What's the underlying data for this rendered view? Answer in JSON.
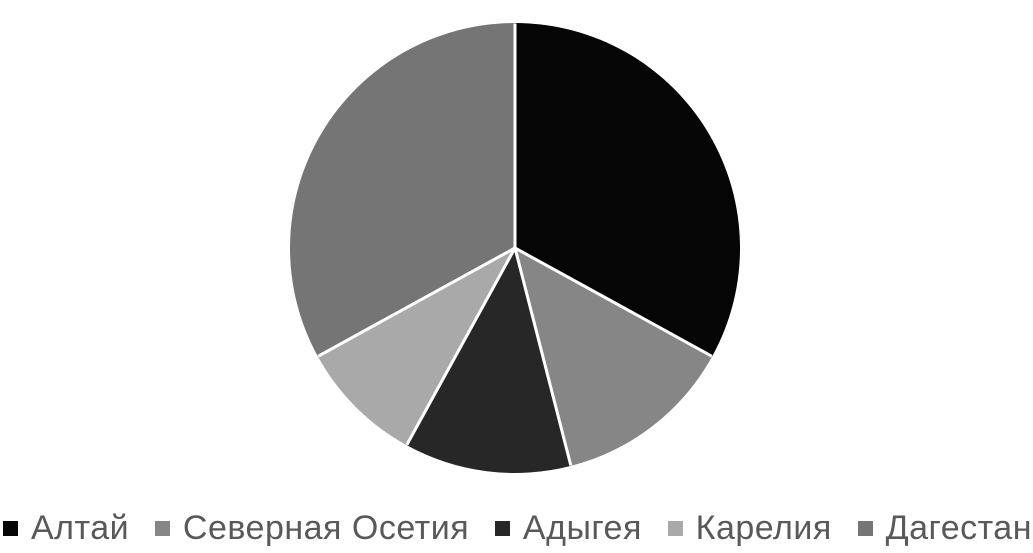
{
  "chart_data": {
    "type": "pie",
    "title": "",
    "legend_position": "bottom",
    "start_angle_deg": 0,
    "direction": "clockwise",
    "values_note": "no data labels visible; values are percents estimated from measured slice angles (~118.5, 47, 43, 33.5, 118 degrees)",
    "slices": [
      {
        "label": "Алтай",
        "value": 33,
        "color": "#050505"
      },
      {
        "label": "Северная Осетия",
        "value": 13,
        "color": "#868686"
      },
      {
        "label": "Адыгея",
        "value": 12,
        "color": "#272727"
      },
      {
        "label": "Карелия",
        "value": 9,
        "color": "#a9a9a9"
      },
      {
        "label": "Дагестан",
        "value": 33,
        "color": "#757575"
      }
    ],
    "separator_color": "#ffffff",
    "background_color": "#ffffff",
    "legend_text_color": "#595959"
  }
}
